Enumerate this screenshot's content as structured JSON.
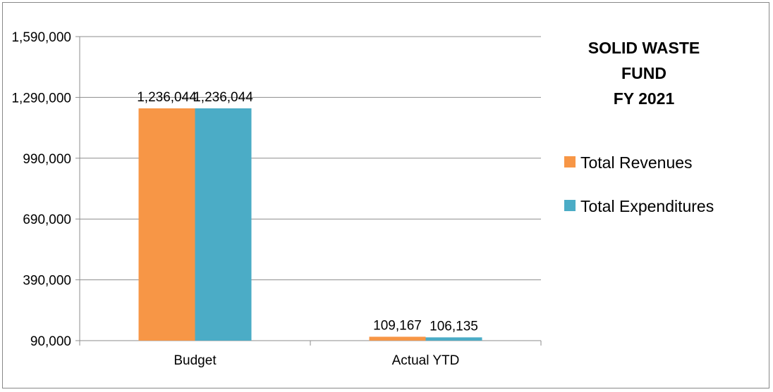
{
  "chart_data": {
    "type": "bar",
    "title_lines": [
      "SOLID WASTE",
      "FUND",
      "FY 2021"
    ],
    "categories": [
      "Budget",
      "Actual YTD"
    ],
    "series": [
      {
        "name": "Total Revenues",
        "color": "#f79646",
        "values": [
          1236044,
          109167
        ],
        "labels": [
          "1,236,044",
          "109,167"
        ]
      },
      {
        "name": "Total Expenditures",
        "color": "#4bacc6",
        "values": [
          1236044,
          106135
        ],
        "labels": [
          "1,236,044",
          "106,135"
        ]
      }
    ],
    "yticks": [
      {
        "value": 90000,
        "label": "90,000"
      },
      {
        "value": 390000,
        "label": "390,000"
      },
      {
        "value": 690000,
        "label": "690,000"
      },
      {
        "value": 990000,
        "label": "990,000"
      },
      {
        "value": 1290000,
        "label": "1,290,000"
      },
      {
        "value": 1590000,
        "label": "1,590,000"
      }
    ],
    "ylim": [
      90000,
      1590000
    ],
    "grid": true,
    "legend_position": "right",
    "grid_color": "#8c8c8c"
  }
}
